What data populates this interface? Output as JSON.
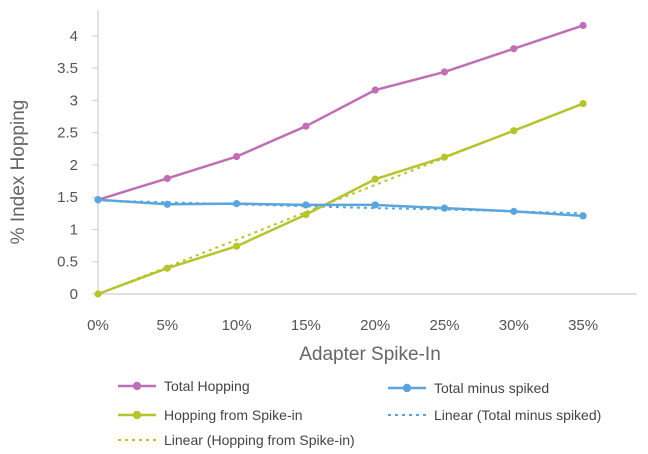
{
  "chart_data": {
    "type": "line",
    "title": "",
    "xlabel": "Adapter Spike-In",
    "ylabel": "% Index Hopping",
    "categories": [
      "0%",
      "5%",
      "10%",
      "15%",
      "20%",
      "25%",
      "30%",
      "35%"
    ],
    "yticks": [
      "0",
      "0.5",
      "1",
      "1.5",
      "2",
      "2.5",
      "3",
      "3.5",
      "4"
    ],
    "ylim": [
      0,
      4.4
    ],
    "grid": false,
    "legend_position": "bottom",
    "series": [
      {
        "name": "Total Hopping",
        "color": "#c06fb6",
        "style": "solid-markers",
        "values": [
          1.46,
          1.79,
          2.13,
          2.6,
          3.16,
          3.44,
          3.8,
          4.16
        ]
      },
      {
        "name": "Total minus spiked",
        "color": "#5aa5dd",
        "style": "solid-markers",
        "values": [
          1.46,
          1.39,
          1.4,
          1.38,
          1.38,
          1.33,
          1.28,
          1.21
        ]
      },
      {
        "name": "Hopping from Spike-in",
        "color": "#b5c42f",
        "style": "solid-markers",
        "values": [
          0.0,
          0.4,
          0.74,
          1.23,
          1.78,
          2.12,
          2.53,
          2.95
        ]
      },
      {
        "name": "Linear (Total minus spiked)",
        "color": "#5aa5dd",
        "style": "dotted",
        "values": [
          1.45,
          1.42,
          1.39,
          1.36,
          1.33,
          1.31,
          1.28,
          1.25
        ]
      },
      {
        "name": "Linear (Hopping from Spike-in)",
        "color": "#b5c42f",
        "style": "dotted",
        "values": [
          0.0,
          0.42,
          0.84,
          1.27,
          1.69,
          2.11,
          2.53,
          2.95
        ]
      }
    ]
  }
}
